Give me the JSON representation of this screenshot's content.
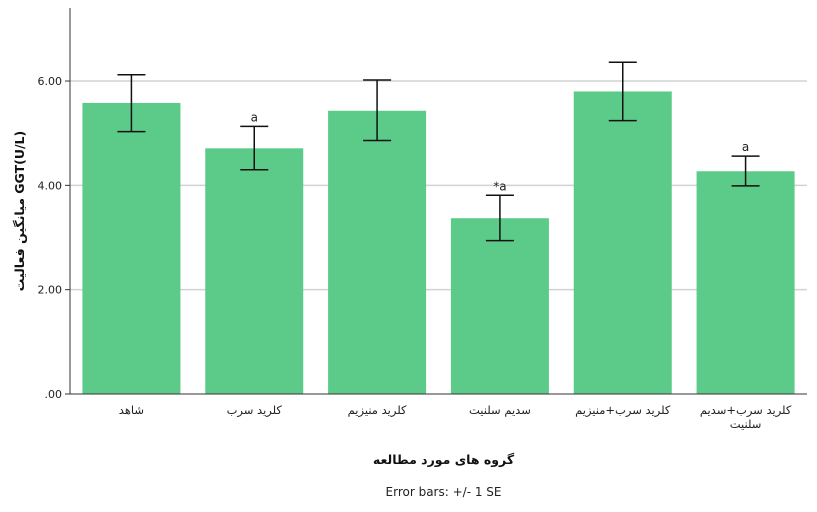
{
  "chart_data": {
    "type": "bar",
    "categories": [
      "شاهد",
      "کلرید سرب",
      "کلرید منیزیم",
      "سدیم سلنیت",
      "کلرید سرب+منیزیم",
      "کلرید سرب+سدیم سلنیت"
    ],
    "values": [
      5.58,
      4.71,
      5.43,
      3.37,
      5.8,
      4.27
    ],
    "error_bars": {
      "lower": [
        5.03,
        4.3,
        4.86,
        2.94,
        5.24,
        3.99
      ],
      "upper": [
        6.12,
        5.13,
        6.02,
        3.81,
        6.36,
        4.56
      ]
    },
    "annotations": [
      "",
      "a",
      "",
      "*a",
      "",
      "a"
    ],
    "title": "",
    "xlabel": "گروه های مورد مطالعه",
    "ylabel": "(GGT(U/L میانگین فعالیت",
    "ylim": [
      0,
      7.4
    ],
    "yticks": [
      0,
      2,
      4,
      6
    ],
    "ytick_labels": [
      ".00",
      "2.00",
      "4.00",
      "6.00"
    ],
    "grid": true,
    "footnote": "Error bars: +/- 1 SE",
    "colors": {
      "bar": "#5ccb8a",
      "grid": "#d2d2d2",
      "axis": "#333333",
      "error": "#111111"
    }
  }
}
